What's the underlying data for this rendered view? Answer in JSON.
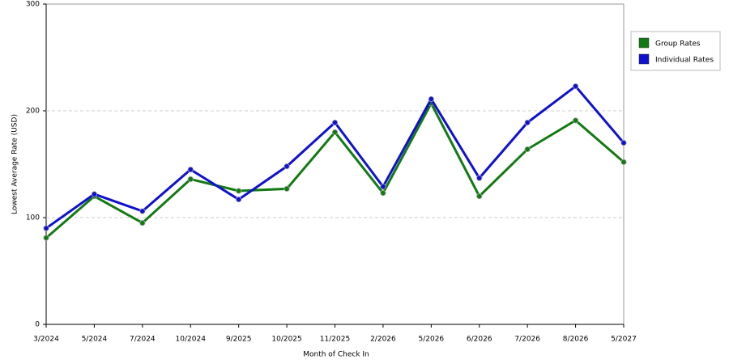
{
  "chart_data": {
    "type": "line",
    "x_label": "Month of Check In",
    "y_label": "Lowest Average Rate (USD)",
    "categories": [
      "3/2024",
      "5/2024",
      "7/2024",
      "10/2024",
      "9/2025",
      "10/2025",
      "11/2025",
      "2/2026",
      "5/2026",
      "6/2026",
      "7/2026",
      "8/2026",
      "5/2027"
    ],
    "series": [
      {
        "name": "Group Rates",
        "color": "#137a13",
        "values": [
          81,
          120,
          95,
          136,
          125,
          127,
          180,
          123,
          207,
          120,
          164,
          191,
          152
        ]
      },
      {
        "name": "Individual Rates",
        "color": "#1010d0",
        "values": [
          90,
          122,
          106,
          145,
          117,
          148,
          189,
          129,
          211,
          137,
          189,
          223,
          170
        ]
      }
    ],
    "ylim": [
      0,
      300
    ],
    "yticks": [
      0,
      100,
      200,
      300
    ],
    "grid": true,
    "legend": "right"
  }
}
